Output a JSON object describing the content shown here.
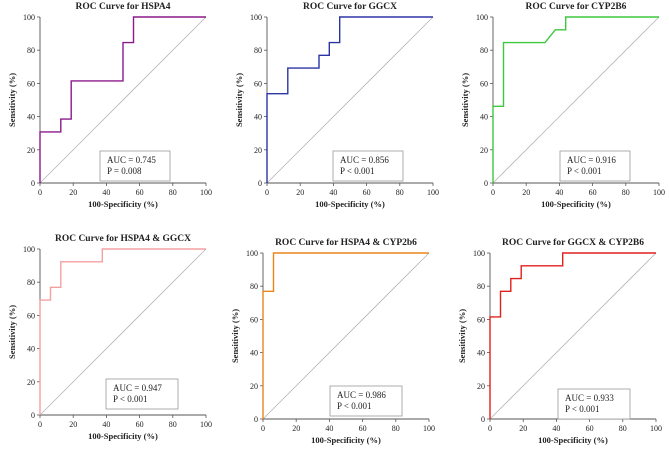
{
  "chart_data": [
    {
      "type": "line",
      "title": "ROC Curve for HSPA4",
      "xlabel": "100-Specificity (%)",
      "ylabel": "Sensitivity (%)",
      "xlim": [
        0,
        100
      ],
      "ylim": [
        0,
        100
      ],
      "xticks": [
        0,
        20,
        40,
        60,
        80,
        100
      ],
      "yticks": [
        0,
        20,
        40,
        60,
        80,
        100
      ],
      "color": "#8b1a8b",
      "points": [
        [
          0,
          0
        ],
        [
          0,
          30.8
        ],
        [
          12.5,
          30.8
        ],
        [
          12.5,
          38.5
        ],
        [
          18.8,
          38.5
        ],
        [
          18.8,
          61.5
        ],
        [
          50,
          61.5
        ],
        [
          50,
          84.6
        ],
        [
          56.3,
          84.6
        ],
        [
          56.3,
          100
        ],
        [
          100,
          100
        ]
      ],
      "annotation": [
        "AUC = 0.745",
        "P = 0.008"
      ]
    },
    {
      "type": "line",
      "title": "ROC Curve for GGCX",
      "xlabel": "100-Specificity (%)",
      "ylabel": "Sensitivity (%)",
      "xlim": [
        0,
        100
      ],
      "ylim": [
        0,
        100
      ],
      "xticks": [
        0,
        20,
        40,
        60,
        80,
        100
      ],
      "yticks": [
        0,
        20,
        40,
        60,
        80,
        100
      ],
      "color": "#2b35a6",
      "points": [
        [
          0,
          0
        ],
        [
          0,
          53.8
        ],
        [
          12.5,
          53.8
        ],
        [
          12.5,
          69.2
        ],
        [
          31.3,
          69.2
        ],
        [
          31.3,
          76.9
        ],
        [
          37.5,
          76.9
        ],
        [
          37.5,
          84.6
        ],
        [
          43.8,
          84.6
        ],
        [
          43.8,
          100
        ],
        [
          100,
          100
        ]
      ],
      "annotation": [
        "AUC = 0.856",
        "P < 0.001"
      ]
    },
    {
      "type": "line",
      "title": "ROC Curve for CYP2B6",
      "xlabel": "100-Specificity (%)",
      "ylabel": "Sensitivity (%)",
      "xlim": [
        0,
        100
      ],
      "ylim": [
        0,
        100
      ],
      "xticks": [
        0,
        20,
        40,
        60,
        80,
        100
      ],
      "yticks": [
        0,
        20,
        40,
        60,
        80,
        100
      ],
      "color": "#3fc83f",
      "points": [
        [
          0,
          0
        ],
        [
          0,
          46.2
        ],
        [
          6.3,
          46.2
        ],
        [
          6.3,
          84.6
        ],
        [
          31.3,
          84.6
        ],
        [
          37.5,
          92.3
        ],
        [
          43.8,
          92.3
        ],
        [
          43.8,
          100
        ],
        [
          100,
          100
        ]
      ],
      "annotation": [
        "AUC = 0.916",
        "P < 0.001"
      ]
    },
    {
      "type": "line",
      "title": "ROC Curve for HSPA4 & GGCX",
      "xlabel": "100-Specificity (%)",
      "ylabel": "Sensitivity (%)",
      "xlim": [
        0,
        100
      ],
      "ylim": [
        0,
        100
      ],
      "xticks": [
        0,
        20,
        40,
        60,
        80,
        100
      ],
      "yticks": [
        0,
        20,
        40,
        60,
        80,
        100
      ],
      "color": "#f4a0a0",
      "points": [
        [
          0,
          0
        ],
        [
          0,
          69.2
        ],
        [
          6.3,
          69.2
        ],
        [
          6.3,
          76.9
        ],
        [
          12.5,
          76.9
        ],
        [
          12.5,
          92.3
        ],
        [
          37.5,
          92.3
        ],
        [
          37.5,
          100
        ],
        [
          100,
          100
        ]
      ],
      "annotation": [
        "AUC = 0.947",
        "P < 0.001"
      ]
    },
    {
      "type": "line",
      "title": "ROC Curve for HSPA4 & CYP2b6",
      "xlabel": "100-Specificity (%)",
      "ylabel": "Sensitivity (%)",
      "xlim": [
        0,
        100
      ],
      "ylim": [
        0,
        100
      ],
      "xticks": [
        0,
        20,
        40,
        60,
        80,
        100
      ],
      "yticks": [
        0,
        20,
        40,
        60,
        80,
        100
      ],
      "color": "#e8861a",
      "points": [
        [
          0,
          0
        ],
        [
          0,
          76.9
        ],
        [
          6.3,
          76.9
        ],
        [
          6.3,
          100
        ],
        [
          100,
          100
        ]
      ],
      "annotation": [
        "AUC = 0.986",
        "P < 0.001"
      ]
    },
    {
      "type": "line",
      "title": "ROC Curve for GGCX & CYP2B6",
      "xlabel": "100-Specificity (%)",
      "ylabel": "Sensitivity (%)",
      "xlim": [
        0,
        100
      ],
      "ylim": [
        0,
        100
      ],
      "xticks": [
        0,
        20,
        40,
        60,
        80,
        100
      ],
      "yticks": [
        0,
        20,
        40,
        60,
        80,
        100
      ],
      "color": "#e0201e",
      "points": [
        [
          0,
          0
        ],
        [
          0,
          61.5
        ],
        [
          6.3,
          61.5
        ],
        [
          6.3,
          76.9
        ],
        [
          12.5,
          76.9
        ],
        [
          12.5,
          84.6
        ],
        [
          18.8,
          84.6
        ],
        [
          18.8,
          92.3
        ],
        [
          43.8,
          92.3
        ],
        [
          43.8,
          100
        ],
        [
          100,
          100
        ]
      ],
      "annotation": [
        "AUC = 0.933",
        "P < 0.001"
      ]
    }
  ]
}
